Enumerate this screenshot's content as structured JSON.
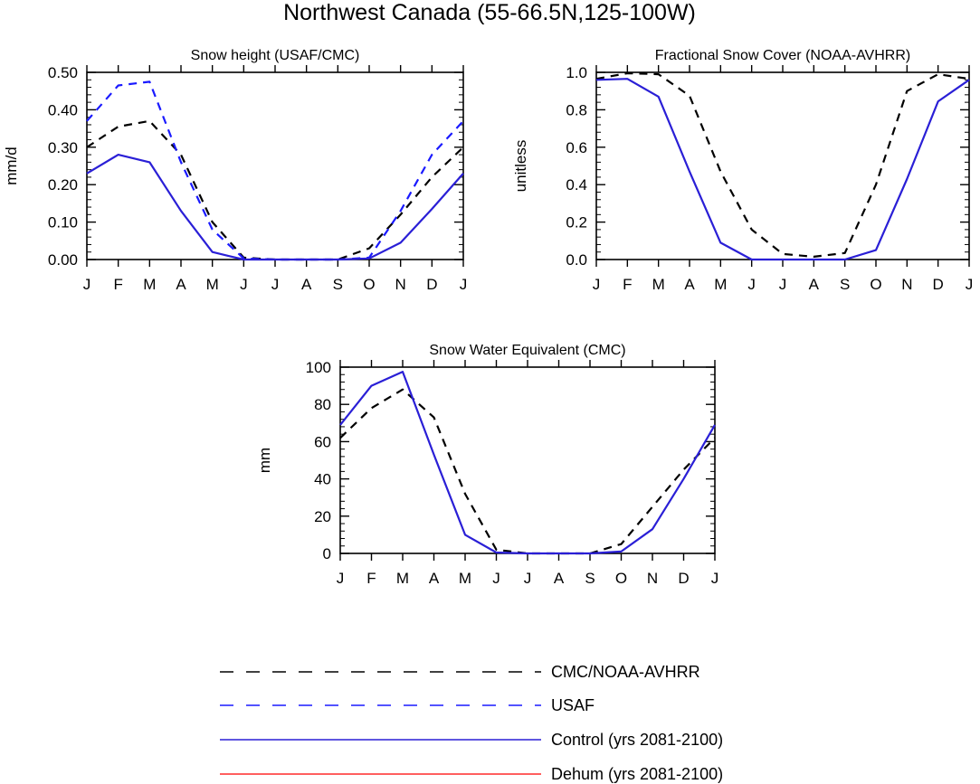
{
  "figure": {
    "title": "Northwest Canada (55-66.5N,125-100W)"
  },
  "legend": [
    {
      "label": "CMC/NOAA-AVHRR",
      "color": "#000000",
      "dash": "dashed"
    },
    {
      "label": "USAF",
      "color": "#1a1aff",
      "dash": "dashed"
    },
    {
      "label": "Control (yrs 2081-2100)",
      "color": "#2a1fd6",
      "dash": "solid"
    },
    {
      "label": "Dehum (yrs 2081-2100)",
      "color": "#ff2a2a",
      "dash": "solid"
    }
  ],
  "chart_data": [
    {
      "type": "line",
      "title": "Snow height (USAF/CMC)",
      "ylabel": "mm/d",
      "xlabel": "",
      "categories": [
        "J",
        "F",
        "M",
        "A",
        "M",
        "J",
        "J",
        "A",
        "S",
        "O",
        "N",
        "D",
        "J"
      ],
      "ylim": [
        0,
        0.5
      ],
      "yticks": [
        "0.00",
        "0.10",
        "0.20",
        "0.30",
        "0.40",
        "0.50"
      ],
      "series": [
        {
          "name": "CMC/NOAA-AVHRR",
          "color": "#000000",
          "dash": "dashed",
          "values": [
            0.3,
            0.355,
            0.37,
            0.28,
            0.1,
            0.005,
            0.0,
            0.0,
            0.0,
            0.03,
            0.12,
            0.22,
            0.3
          ]
        },
        {
          "name": "USAF",
          "color": "#1a1aff",
          "dash": "dashed",
          "values": [
            0.37,
            0.465,
            0.475,
            0.26,
            0.08,
            0.003,
            0.0,
            0.0,
            0.0,
            0.005,
            0.13,
            0.28,
            0.37
          ]
        },
        {
          "name": "Control (yrs 2081-2100)",
          "color": "#2a1fd6",
          "dash": "solid",
          "values": [
            0.23,
            0.28,
            0.26,
            0.13,
            0.02,
            0.0,
            0.0,
            0.0,
            0.0,
            0.003,
            0.045,
            0.135,
            0.23
          ]
        }
      ]
    },
    {
      "type": "line",
      "title": "Fractional Snow Cover (NOAA-AVHRR)",
      "ylabel": "unitless",
      "xlabel": "",
      "categories": [
        "J",
        "F",
        "M",
        "A",
        "M",
        "J",
        "J",
        "A",
        "S",
        "O",
        "N",
        "D",
        "J"
      ],
      "ylim": [
        0,
        1.0
      ],
      "yticks": [
        "0.0",
        "0.2",
        "0.4",
        "0.6",
        "0.8",
        "1.0"
      ],
      "series": [
        {
          "name": "CMC/NOAA-AVHRR",
          "color": "#000000",
          "dash": "dashed",
          "values": [
            0.965,
            0.995,
            0.99,
            0.875,
            0.47,
            0.16,
            0.03,
            0.015,
            0.035,
            0.4,
            0.9,
            0.99,
            0.965
          ]
        },
        {
          "name": "Control (yrs 2081-2100)",
          "color": "#2a1fd6",
          "dash": "solid",
          "values": [
            0.96,
            0.965,
            0.87,
            0.47,
            0.09,
            0.0,
            0.0,
            0.0,
            0.0,
            0.05,
            0.43,
            0.845,
            0.96
          ]
        }
      ]
    },
    {
      "type": "line",
      "title": "Snow Water Equivalent (CMC)",
      "ylabel": "mm",
      "xlabel": "",
      "categories": [
        "J",
        "F",
        "M",
        "A",
        "M",
        "J",
        "J",
        "A",
        "S",
        "O",
        "N",
        "D",
        "J"
      ],
      "ylim": [
        0,
        100
      ],
      "yticks": [
        "0",
        "20",
        "40",
        "60",
        "80",
        "100"
      ],
      "series": [
        {
          "name": "CMC/NOAA-AVHRR",
          "color": "#000000",
          "dash": "dashed",
          "values": [
            62,
            78,
            88,
            73,
            32,
            2,
            0,
            0,
            0,
            5,
            25,
            45,
            62
          ]
        },
        {
          "name": "Control (yrs 2081-2100)",
          "color": "#2a1fd6",
          "dash": "solid",
          "values": [
            69,
            90,
            97.5,
            53,
            10,
            0.5,
            0,
            0,
            0,
            1,
            13,
            40,
            69
          ]
        }
      ]
    }
  ]
}
